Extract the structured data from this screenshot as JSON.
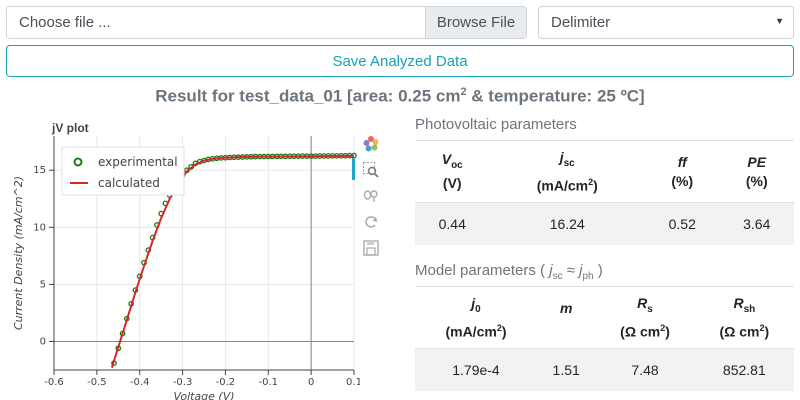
{
  "file": {
    "placeholder": "Choose file ...",
    "browse_label": "Browse File"
  },
  "delimiter": {
    "selected": "Delimiter"
  },
  "save_button": "Save Analyzed Data",
  "result": {
    "prefix": "Result for test_data_01 [area: 0.25 cm",
    "exp": "2",
    "suffix": " & temperature: 25 ºC]"
  },
  "plot": {
    "title": "jV plot",
    "legend": [
      "experimental",
      "calculated"
    ]
  },
  "chart_data": {
    "type": "scatter",
    "title": "jV plot",
    "xlabel": "Voltage (V)",
    "ylabel": "Current Density (mA/cm^2)",
    "xlim": [
      -0.6,
      0.1
    ],
    "ylim": [
      -2.5,
      18
    ],
    "x_ticks": [
      -0.6,
      -0.5,
      -0.4,
      -0.3,
      -0.2,
      -0.1,
      0,
      0.1
    ],
    "y_ticks": [
      0,
      5,
      10,
      15
    ],
    "legend_position": "top-left",
    "grid": true,
    "colors": {
      "experimental": "#1a7a1a",
      "calculated": "#d62728"
    },
    "series": [
      {
        "name": "experimental",
        "style": "markers",
        "x": [
          -0.46,
          -0.45,
          -0.44,
          -0.43,
          -0.42,
          -0.41,
          -0.4,
          -0.39,
          -0.38,
          -0.37,
          -0.36,
          -0.35,
          -0.34,
          -0.33,
          -0.32,
          -0.31,
          -0.3,
          -0.29,
          -0.28,
          -0.27,
          -0.26,
          -0.25,
          -0.24,
          -0.23,
          -0.22,
          -0.21,
          -0.2,
          -0.19,
          -0.18,
          -0.17,
          -0.16,
          -0.15,
          -0.14,
          -0.13,
          -0.12,
          -0.11,
          -0.1,
          -0.09,
          -0.08,
          -0.07,
          -0.06,
          -0.05,
          -0.04,
          -0.03,
          -0.02,
          -0.01,
          0.0,
          0.01,
          0.02,
          0.03,
          0.04,
          0.05,
          0.06,
          0.07,
          0.08,
          0.09,
          0.1
        ],
        "y": [
          -1.9,
          -0.6,
          0.7,
          2.0,
          3.3,
          4.5,
          5.7,
          6.9,
          8.0,
          9.1,
          10.2,
          11.2,
          12.1,
          12.8,
          13.5,
          14.1,
          14.6,
          15.0,
          15.3,
          15.6,
          15.75,
          15.85,
          15.95,
          16.0,
          16.05,
          16.08,
          16.1,
          16.12,
          16.14,
          16.15,
          16.16,
          16.17,
          16.18,
          16.19,
          16.2,
          16.2,
          16.21,
          16.21,
          16.22,
          16.22,
          16.22,
          16.23,
          16.23,
          16.23,
          16.24,
          16.24,
          16.24,
          16.24,
          16.25,
          16.25,
          16.25,
          16.26,
          16.26,
          16.27,
          16.27,
          16.28,
          16.28
        ]
      },
      {
        "name": "calculated",
        "style": "line",
        "x": [
          -0.465,
          -0.45,
          -0.43,
          -0.41,
          -0.39,
          -0.37,
          -0.35,
          -0.33,
          -0.31,
          -0.29,
          -0.27,
          -0.25,
          -0.23,
          -0.21,
          -0.19,
          -0.17,
          -0.15,
          -0.12,
          -0.09,
          -0.06,
          -0.03,
          0.0,
          0.03,
          0.06,
          0.1
        ],
        "y": [
          -2.3,
          -0.5,
          1.9,
          4.3,
          6.6,
          8.8,
          10.8,
          12.5,
          13.9,
          14.9,
          15.5,
          15.85,
          16.0,
          16.08,
          16.12,
          16.15,
          16.17,
          16.19,
          16.2,
          16.21,
          16.22,
          16.23,
          16.24,
          16.25,
          16.26
        ]
      }
    ]
  },
  "pv": {
    "title": "Photovoltaic parameters",
    "headers": [
      {
        "sym": "V",
        "sub": "oc",
        "unit": "(V)"
      },
      {
        "sym": "j",
        "sub": "sc",
        "unit_pre": "(mA/cm",
        "unit_sup": "2",
        "unit_post": ")"
      },
      {
        "sym": "ff",
        "sub": "",
        "unit": "(%)"
      },
      {
        "sym": "PE",
        "sub": "",
        "unit": "(%)"
      }
    ],
    "values": [
      "0.44",
      "16.24",
      "0.52",
      "3.64"
    ]
  },
  "model": {
    "title_pre": "Model parameters ( ",
    "j1": "j",
    "j1_sub": "sc",
    "approx": " ≈ ",
    "j2": "j",
    "j2_sub": "ph",
    "title_post": " )",
    "headers": [
      {
        "sym": "j",
        "sub": "0",
        "unit_pre": "(mA/cm",
        "unit_sup": "2",
        "unit_post": ")"
      },
      {
        "sym": "m",
        "sub": "",
        "unit": ""
      },
      {
        "sym": "R",
        "sub": "s",
        "unit_pre": "(Ω cm",
        "unit_sup": "2",
        "unit_post": ")"
      },
      {
        "sym": "R",
        "sub": "sh",
        "unit_pre": "(Ω cm",
        "unit_sup": "2",
        "unit_post": ")"
      }
    ],
    "values": [
      "1.79e-4",
      "1.51",
      "7.48",
      "852.81"
    ]
  }
}
